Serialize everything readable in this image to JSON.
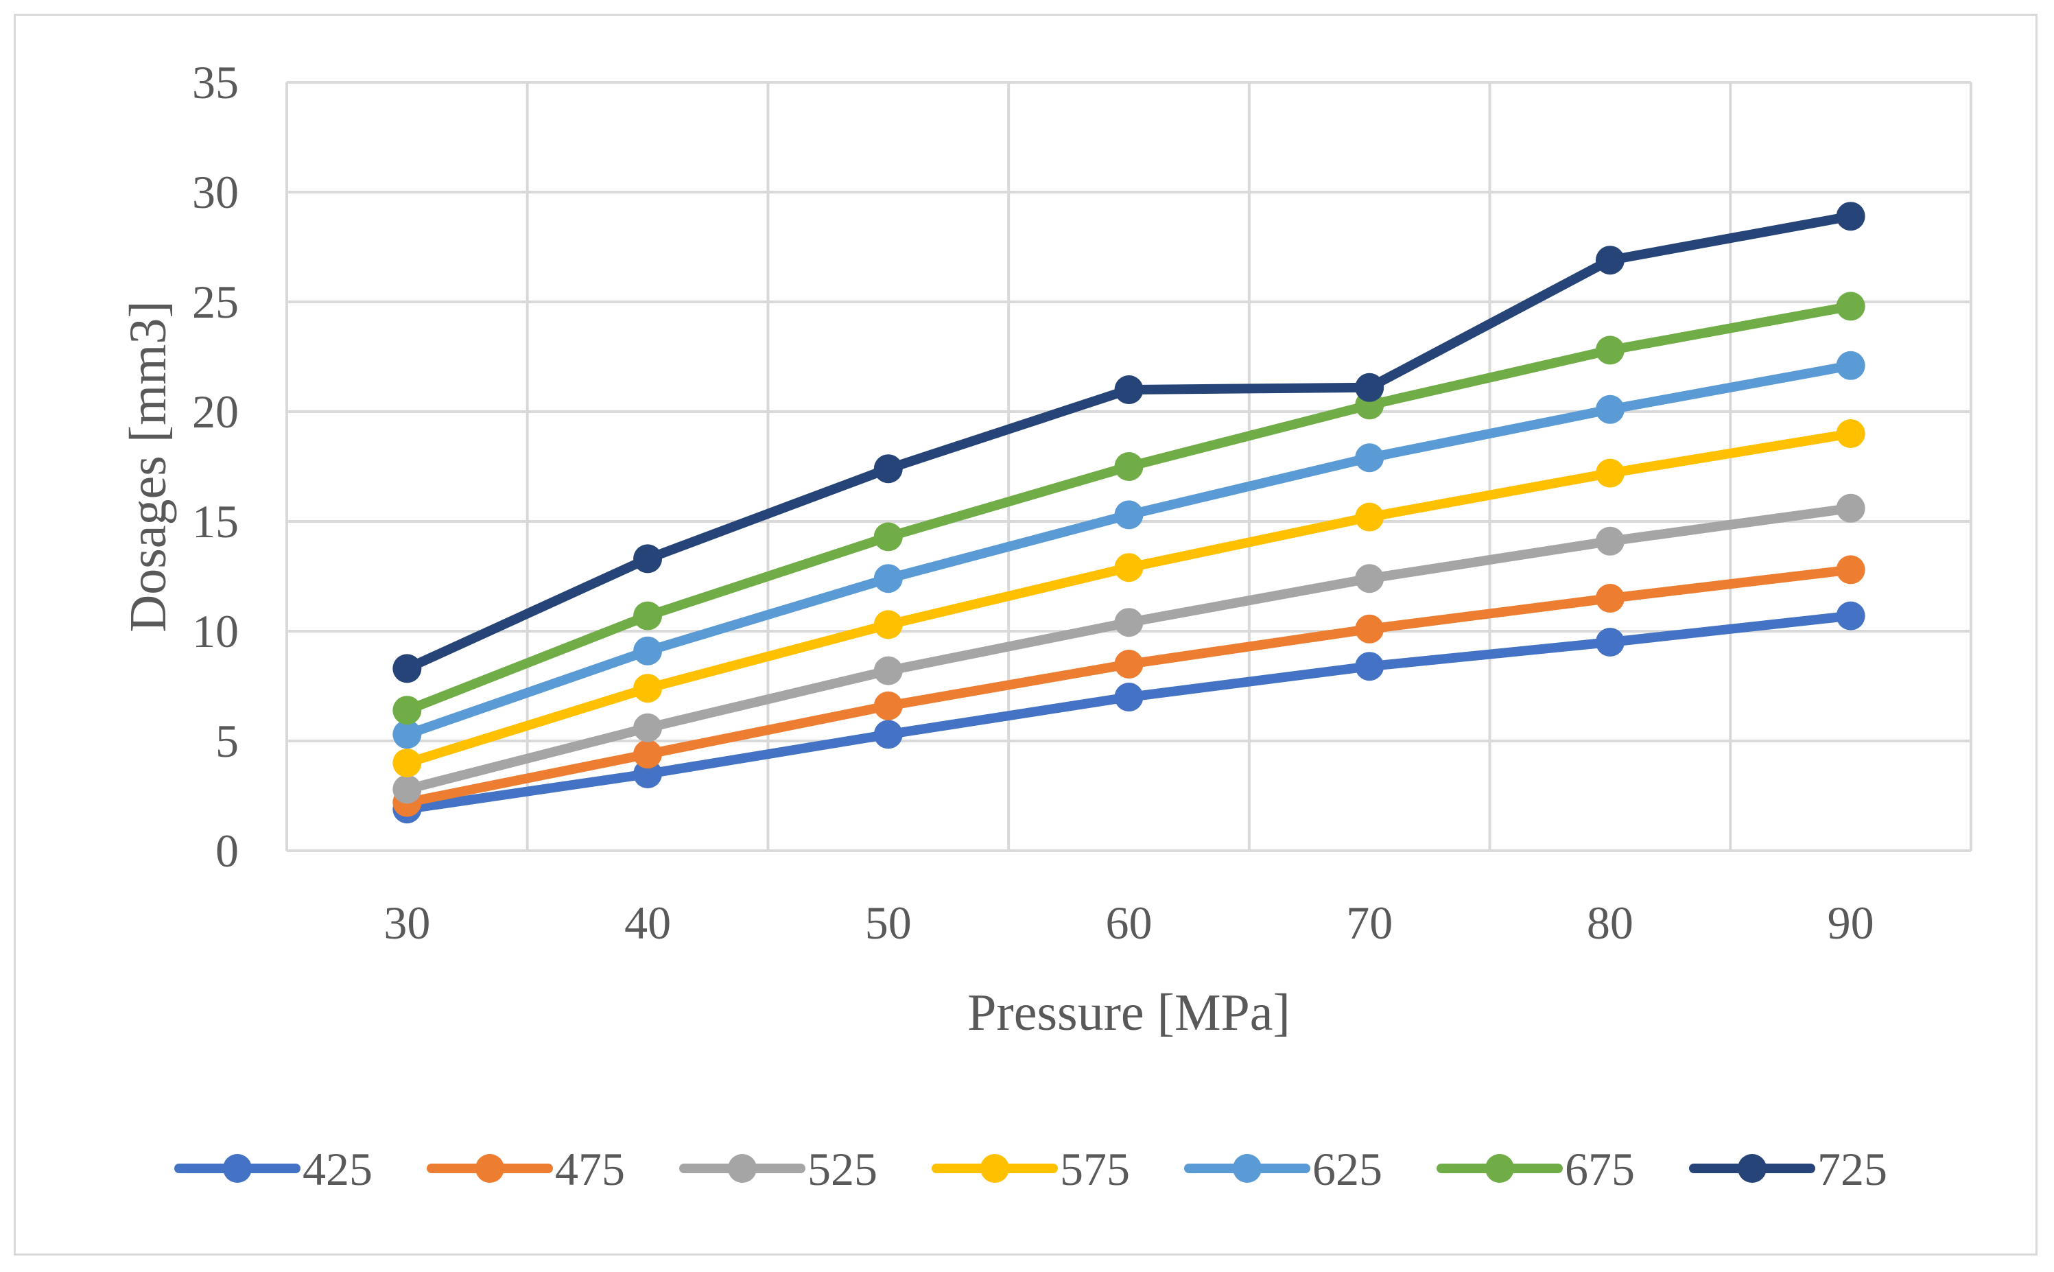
{
  "chart_data": {
    "type": "line",
    "title": "",
    "xlabel": "Pressure [MPa]",
    "ylabel": "Dosages [mm3]",
    "x": [
      30,
      40,
      50,
      60,
      70,
      80,
      90
    ],
    "x_tick_labels": [
      "30",
      "40",
      "50",
      "60",
      "70",
      "80",
      "90"
    ],
    "y_tick_labels": [
      "0",
      "5",
      "10",
      "15",
      "20",
      "25",
      "30",
      "35"
    ],
    "ylim": [
      0,
      35
    ],
    "grid": true,
    "legend_position": "bottom",
    "series": [
      {
        "name": "425",
        "color": "#4472c4",
        "values": [
          1.9,
          3.5,
          5.3,
          7.0,
          8.4,
          9.5,
          10.7
        ]
      },
      {
        "name": "475",
        "color": "#ed7d31",
        "values": [
          2.2,
          4.4,
          6.6,
          8.5,
          10.1,
          11.5,
          12.8
        ]
      },
      {
        "name": "525",
        "color": "#a5a5a5",
        "values": [
          2.8,
          5.6,
          8.2,
          10.4,
          12.4,
          14.1,
          15.6
        ]
      },
      {
        "name": "575",
        "color": "#ffc000",
        "values": [
          4.0,
          7.4,
          10.3,
          12.9,
          15.2,
          17.2,
          19.0
        ]
      },
      {
        "name": "625",
        "color": "#5b9bd5",
        "values": [
          5.3,
          9.1,
          12.4,
          15.3,
          17.9,
          20.1,
          22.1
        ]
      },
      {
        "name": "675",
        "color": "#70ad47",
        "values": [
          6.4,
          10.7,
          14.3,
          17.5,
          20.3,
          22.8,
          24.8
        ]
      },
      {
        "name": "725",
        "color": "#264478",
        "values": [
          8.3,
          13.3,
          17.4,
          21.0,
          21.1,
          26.9,
          28.9
        ]
      }
    ]
  }
}
